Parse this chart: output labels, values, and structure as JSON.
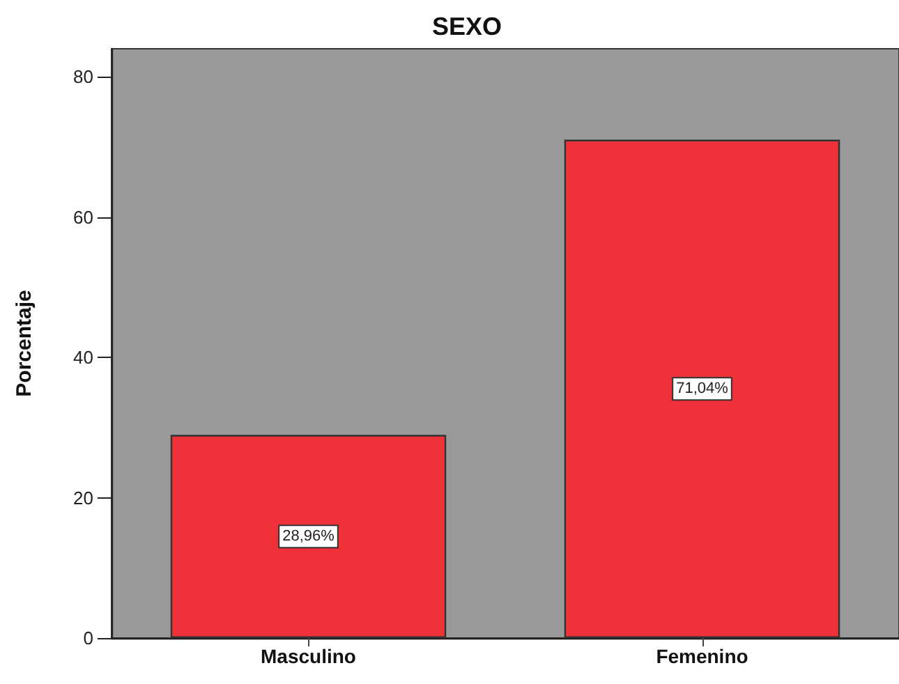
{
  "chart_data": {
    "type": "bar",
    "title": "SEXO",
    "ylabel": "Porcentaje",
    "categories": [
      "Masculino",
      "Femenino"
    ],
    "values": [
      28.96,
      71.04
    ],
    "color": "#ef3139",
    "value_labels": [
      "28,96%",
      "71,04%"
    ],
    "ylim": [
      0,
      84
    ],
    "yticks": [
      0,
      20,
      40,
      60,
      80
    ],
    "grid": false
  }
}
